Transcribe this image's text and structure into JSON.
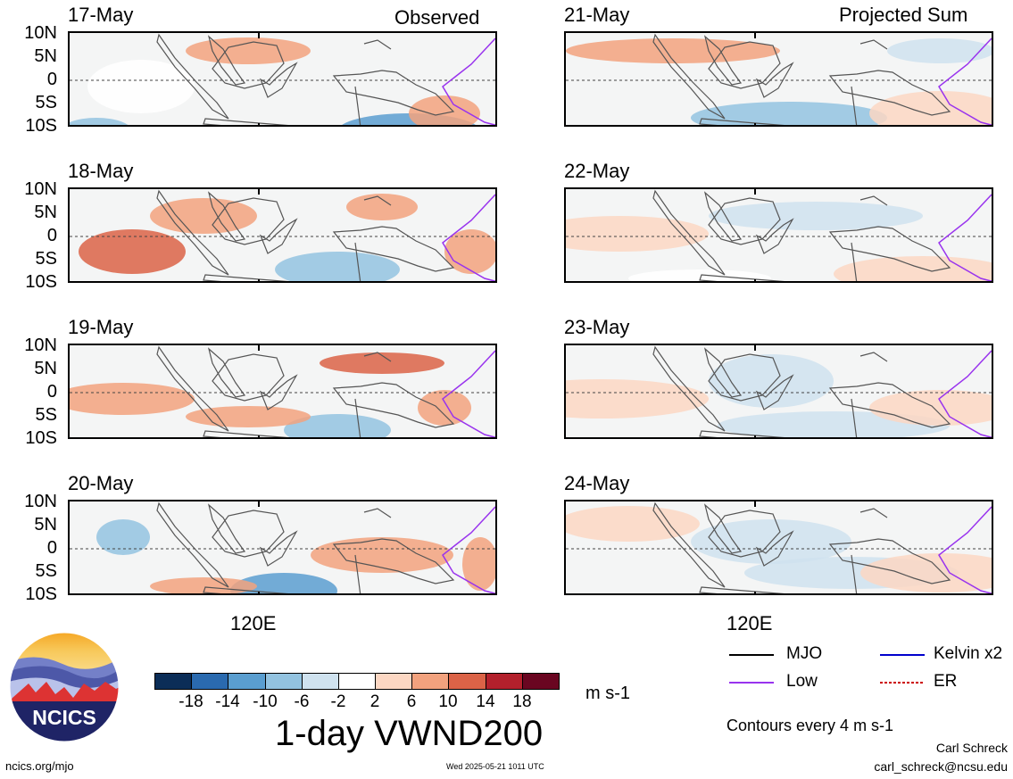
{
  "headers": {
    "left": "Observed",
    "right": "Projected Sum"
  },
  "y_labels": [
    "10N",
    "5N",
    "0",
    "5S",
    "10S"
  ],
  "x_label": "120E",
  "panels": {
    "left": [
      {
        "date": "17-May"
      },
      {
        "date": "18-May"
      },
      {
        "date": "19-May"
      },
      {
        "date": "20-May"
      }
    ],
    "right": [
      {
        "date": "21-May"
      },
      {
        "date": "22-May"
      },
      {
        "date": "23-May"
      },
      {
        "date": "24-May"
      }
    ]
  },
  "colorbar": {
    "colors": [
      "#0b2d57",
      "#2a6aaf",
      "#5a9ed0",
      "#93c3e0",
      "#cfe2ef",
      "#ffffff",
      "#fcd7c3",
      "#f2a27e",
      "#db6347",
      "#b3202c",
      "#6a0621"
    ],
    "ticks": [
      "-18",
      "-14",
      "-10",
      "-6",
      "-2",
      "2",
      "6",
      "10",
      "14",
      "18"
    ],
    "units": "m s-1",
    "title": "1-day VWND200"
  },
  "legend": {
    "items": [
      {
        "label": "MJO",
        "color": "#000000"
      },
      {
        "label": "Kelvin x2",
        "color": "#0000cc"
      },
      {
        "label": "Low",
        "color": "#9933ee"
      },
      {
        "label": "ER",
        "color": "#cc0000"
      }
    ],
    "note": "Contours every 4 m s-1"
  },
  "logo": {
    "text": "NCICS"
  },
  "footer": {
    "url": "ncics.org/mjo",
    "timestamp": "Wed 2025-05-21 1011 UTC",
    "author": "Carl Schreck",
    "email": "carl_schreck@ncsu.edu"
  }
}
